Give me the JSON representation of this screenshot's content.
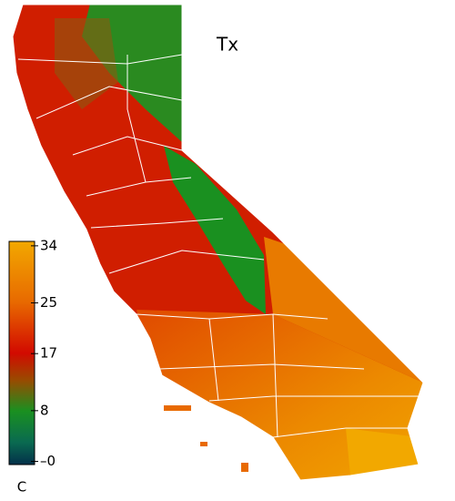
{
  "map": {
    "title": "Tx",
    "unit": "C",
    "colorbar": {
      "clim": [
        -0.5,
        34.7
      ],
      "ticks": [
        34,
        25,
        17,
        8,
        {
          "value": 0,
          "label": "–0"
        }
      ]
    }
  }
}
